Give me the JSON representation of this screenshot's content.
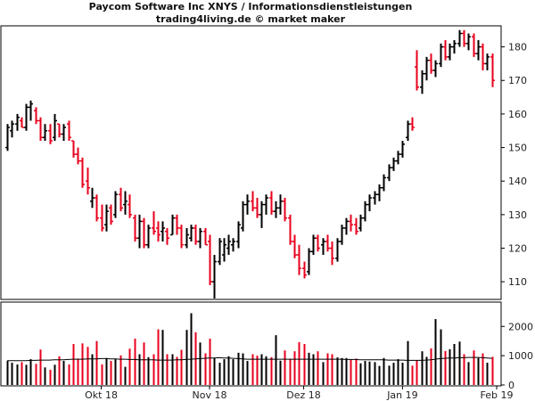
{
  "header": {
    "title": "Paycom Software Inc XNYS / Informationsdienstleistungen",
    "subtitle": "trading4living.de © market maker"
  },
  "colors": {
    "up": "#000000",
    "down": "#e8001c",
    "ma": "#000000",
    "frame": "#000000"
  },
  "chart_data": [
    {
      "type": "ohlc",
      "title": "Paycom Software Inc XNYS / Informationsdienstleistungen",
      "subtitle": "trading4living.de © market maker",
      "ylim": [
        105,
        186
      ],
      "y_ticks": [
        110,
        120,
        130,
        140,
        150,
        160,
        170,
        180
      ],
      "x_labels": [
        {
          "label": "Okt 18",
          "bar": 20
        },
        {
          "label": "Nov 18",
          "bar": 43
        },
        {
          "label": "Dez 18",
          "bar": 63
        },
        {
          "label": "Jan 19",
          "bar": 84
        },
        {
          "label": "Feb 19",
          "bar": 104
        }
      ],
      "bars": [
        {
          "o": 150,
          "h": 157,
          "l": 149,
          "c": 156
        },
        {
          "o": 155,
          "h": 158,
          "l": 153,
          "c": 157
        },
        {
          "o": 157,
          "h": 160,
          "l": 155,
          "c": 159
        },
        {
          "o": 158,
          "h": 159,
          "l": 156,
          "c": 156
        },
        {
          "o": 156,
          "h": 163,
          "l": 155,
          "c": 162
        },
        {
          "o": 162,
          "h": 164,
          "l": 158,
          "c": 163
        },
        {
          "o": 161,
          "h": 162,
          "l": 157,
          "c": 158
        },
        {
          "o": 158,
          "h": 159,
          "l": 152,
          "c": 153
        },
        {
          "o": 153,
          "h": 157,
          "l": 152,
          "c": 155
        },
        {
          "o": 155,
          "h": 157,
          "l": 151,
          "c": 152
        },
        {
          "o": 153,
          "h": 160,
          "l": 152,
          "c": 158
        },
        {
          "o": 157,
          "h": 157,
          "l": 153,
          "c": 154
        },
        {
          "o": 154,
          "h": 157,
          "l": 152,
          "c": 156
        },
        {
          "o": 157,
          "h": 158,
          "l": 152,
          "c": 153
        },
        {
          "o": 152,
          "h": 152,
          "l": 147,
          "c": 148
        },
        {
          "o": 148,
          "h": 150,
          "l": 145,
          "c": 146
        },
        {
          "o": 146,
          "h": 147,
          "l": 138,
          "c": 139
        },
        {
          "o": 140,
          "h": 144,
          "l": 136,
          "c": 138
        },
        {
          "o": 134,
          "h": 138,
          "l": 132,
          "c": 135
        },
        {
          "o": 135,
          "h": 136,
          "l": 128,
          "c": 129
        },
        {
          "o": 129,
          "h": 133,
          "l": 125,
          "c": 126
        },
        {
          "o": 127,
          "h": 133,
          "l": 125,
          "c": 131
        },
        {
          "o": 132,
          "h": 133,
          "l": 127,
          "c": 128
        },
        {
          "o": 130,
          "h": 137,
          "l": 129,
          "c": 136
        },
        {
          "o": 136,
          "h": 138,
          "l": 131,
          "c": 132
        },
        {
          "o": 133,
          "h": 137,
          "l": 130,
          "c": 134
        },
        {
          "o": 133,
          "h": 136,
          "l": 129,
          "c": 130
        },
        {
          "o": 129,
          "h": 130,
          "l": 122,
          "c": 123
        },
        {
          "o": 123,
          "h": 130,
          "l": 120,
          "c": 128
        },
        {
          "o": 128,
          "h": 129,
          "l": 120,
          "c": 121
        },
        {
          "o": 121,
          "h": 127,
          "l": 120,
          "c": 126
        },
        {
          "o": 126,
          "h": 131,
          "l": 124,
          "c": 125
        },
        {
          "o": 126,
          "h": 128,
          "l": 122,
          "c": 124
        },
        {
          "o": 125,
          "h": 128,
          "l": 122,
          "c": 126
        },
        {
          "o": 125,
          "h": 126,
          "l": 121,
          "c": 123
        },
        {
          "o": 124,
          "h": 130,
          "l": 124,
          "c": 129
        },
        {
          "o": 129,
          "h": 130,
          "l": 124,
          "c": 126
        },
        {
          "o": 126,
          "h": 127,
          "l": 120,
          "c": 121
        },
        {
          "o": 121,
          "h": 126,
          "l": 120,
          "c": 124
        },
        {
          "o": 123,
          "h": 127,
          "l": 122,
          "c": 126
        },
        {
          "o": 126,
          "h": 127,
          "l": 121,
          "c": 122
        },
        {
          "o": 122,
          "h": 126,
          "l": 120,
          "c": 125
        },
        {
          "o": 125,
          "h": 126,
          "l": 121,
          "c": 121
        },
        {
          "o": 122,
          "h": 124,
          "l": 109,
          "c": 110
        },
        {
          "o": 110,
          "h": 118,
          "l": 105,
          "c": 116
        },
        {
          "o": 116,
          "h": 123,
          "l": 115,
          "c": 122
        },
        {
          "o": 118,
          "h": 123,
          "l": 116,
          "c": 121
        },
        {
          "o": 120,
          "h": 124,
          "l": 118,
          "c": 122
        },
        {
          "o": 121,
          "h": 123,
          "l": 119,
          "c": 122
        },
        {
          "o": 122,
          "h": 128,
          "l": 120,
          "c": 127
        },
        {
          "o": 126,
          "h": 134,
          "l": 125,
          "c": 133
        },
        {
          "o": 133,
          "h": 136,
          "l": 130,
          "c": 134
        },
        {
          "o": 134,
          "h": 137,
          "l": 131,
          "c": 132
        },
        {
          "o": 132,
          "h": 135,
          "l": 129,
          "c": 130
        },
        {
          "o": 130,
          "h": 134,
          "l": 126,
          "c": 133
        },
        {
          "o": 133,
          "h": 136,
          "l": 130,
          "c": 135
        },
        {
          "o": 135,
          "h": 137,
          "l": 130,
          "c": 131
        },
        {
          "o": 131,
          "h": 134,
          "l": 129,
          "c": 132
        },
        {
          "o": 132,
          "h": 136,
          "l": 130,
          "c": 134
        },
        {
          "o": 134,
          "h": 135,
          "l": 128,
          "c": 129
        },
        {
          "o": 129,
          "h": 130,
          "l": 121,
          "c": 122
        },
        {
          "o": 122,
          "h": 124,
          "l": 117,
          "c": 118
        },
        {
          "o": 118,
          "h": 121,
          "l": 112,
          "c": 114
        },
        {
          "o": 114,
          "h": 116,
          "l": 111,
          "c": 112
        },
        {
          "o": 113,
          "h": 120,
          "l": 112,
          "c": 119
        },
        {
          "o": 119,
          "h": 124,
          "l": 118,
          "c": 123
        },
        {
          "o": 123,
          "h": 124,
          "l": 119,
          "c": 120
        },
        {
          "o": 121,
          "h": 123,
          "l": 118,
          "c": 122
        },
        {
          "o": 122,
          "h": 124,
          "l": 119,
          "c": 120
        },
        {
          "o": 120,
          "h": 122,
          "l": 115,
          "c": 117
        },
        {
          "o": 117,
          "h": 123,
          "l": 116,
          "c": 122
        },
        {
          "o": 122,
          "h": 127,
          "l": 121,
          "c": 126
        },
        {
          "o": 126,
          "h": 129,
          "l": 124,
          "c": 128
        },
        {
          "o": 128,
          "h": 130,
          "l": 125,
          "c": 127
        },
        {
          "o": 127,
          "h": 129,
          "l": 124,
          "c": 125
        },
        {
          "o": 126,
          "h": 130,
          "l": 125,
          "c": 129
        },
        {
          "o": 129,
          "h": 134,
          "l": 128,
          "c": 133
        },
        {
          "o": 133,
          "h": 136,
          "l": 131,
          "c": 135
        },
        {
          "o": 135,
          "h": 137,
          "l": 133,
          "c": 136
        },
        {
          "o": 136,
          "h": 139,
          "l": 134,
          "c": 138
        },
        {
          "o": 138,
          "h": 142,
          "l": 137,
          "c": 141
        },
        {
          "o": 141,
          "h": 145,
          "l": 140,
          "c": 144
        },
        {
          "o": 144,
          "h": 147,
          "l": 143,
          "c": 146
        },
        {
          "o": 146,
          "h": 149,
          "l": 145,
          "c": 148
        },
        {
          "o": 148,
          "h": 152,
          "l": 147,
          "c": 151
        },
        {
          "o": 153,
          "h": 158,
          "l": 152,
          "c": 157
        },
        {
          "o": 157,
          "h": 159,
          "l": 155,
          "c": 156
        },
        {
          "o": 174,
          "h": 179,
          "l": 167,
          "c": 168
        },
        {
          "o": 168,
          "h": 173,
          "l": 166,
          "c": 172
        },
        {
          "o": 172,
          "h": 177,
          "l": 170,
          "c": 176
        },
        {
          "o": 176,
          "h": 178,
          "l": 172,
          "c": 173
        },
        {
          "o": 173,
          "h": 176,
          "l": 171,
          "c": 175
        },
        {
          "o": 175,
          "h": 181,
          "l": 174,
          "c": 180
        },
        {
          "o": 180,
          "h": 182,
          "l": 176,
          "c": 177
        },
        {
          "o": 177,
          "h": 181,
          "l": 176,
          "c": 180
        },
        {
          "o": 180,
          "h": 182,
          "l": 178,
          "c": 181
        },
        {
          "o": 181,
          "h": 185,
          "l": 180,
          "c": 184
        },
        {
          "o": 184,
          "h": 185,
          "l": 180,
          "c": 181
        },
        {
          "o": 181,
          "h": 184,
          "l": 179,
          "c": 183
        },
        {
          "o": 183,
          "h": 184,
          "l": 177,
          "c": 178
        },
        {
          "o": 178,
          "h": 182,
          "l": 176,
          "c": 180
        },
        {
          "o": 180,
          "h": 181,
          "l": 173,
          "c": 175
        },
        {
          "o": 175,
          "h": 178,
          "l": 173,
          "c": 177
        },
        {
          "o": 177,
          "h": 178,
          "l": 168,
          "c": 170
        }
      ]
    },
    {
      "type": "bar",
      "ylim": [
        0,
        2800
      ],
      "y_ticks": [
        0,
        1000,
        2000
      ],
      "volumes": [
        820,
        760,
        700,
        780,
        690,
        880,
        720,
        1210,
        600,
        520,
        690,
        980,
        820,
        700,
        1400,
        900,
        1420,
        1300,
        1050,
        1500,
        700,
        920,
        820,
        880,
        1010,
        620,
        1240,
        1580,
        1050,
        1450,
        950,
        1050,
        1900,
        1880,
        1050,
        1050,
        960,
        1200,
        1880,
        2450,
        1800,
        1450,
        1080,
        1580,
        920,
        760,
        880,
        980,
        880,
        1100,
        1080,
        820,
        1050,
        1000,
        1050,
        980,
        950,
        1700,
        830,
        1180,
        890,
        1150,
        1460,
        1400,
        1100,
        1050,
        1150,
        780,
        1080,
        1050,
        940,
        920,
        920,
        880,
        900,
        740,
        820,
        800,
        780,
        650,
        920,
        660,
        760,
        880,
        760,
        1500,
        660,
        850,
        1150,
        960,
        1250,
        2250,
        1900,
        1160,
        1220,
        1400,
        1480,
        1050,
        780,
        1180,
        920,
        1080,
        760,
        960
      ],
      "ma": [
        830,
        830,
        830,
        830,
        830,
        840,
        840,
        850,
        850,
        850,
        860,
        860,
        860,
        870,
        880,
        880,
        880,
        890,
        890,
        890,
        900,
        900,
        890,
        890,
        880,
        880,
        870,
        870,
        860,
        860,
        860,
        860,
        850,
        850,
        850,
        850,
        860,
        860,
        870,
        880,
        890,
        900,
        910,
        920,
        920,
        930,
        920,
        920,
        910,
        900,
        890,
        880,
        880,
        880,
        880,
        880,
        880,
        880,
        880,
        880,
        880,
        880,
        880,
        880,
        880,
        880,
        880,
        880,
        880,
        880,
        880,
        880,
        870,
        870,
        870,
        860,
        860,
        860,
        860,
        860,
        860,
        850,
        850,
        850,
        850,
        840,
        840,
        840,
        840,
        850,
        860,
        880,
        900,
        910,
        920,
        920,
        930,
        930,
        940,
        940,
        940,
        930,
        920,
        910
      ]
    }
  ]
}
